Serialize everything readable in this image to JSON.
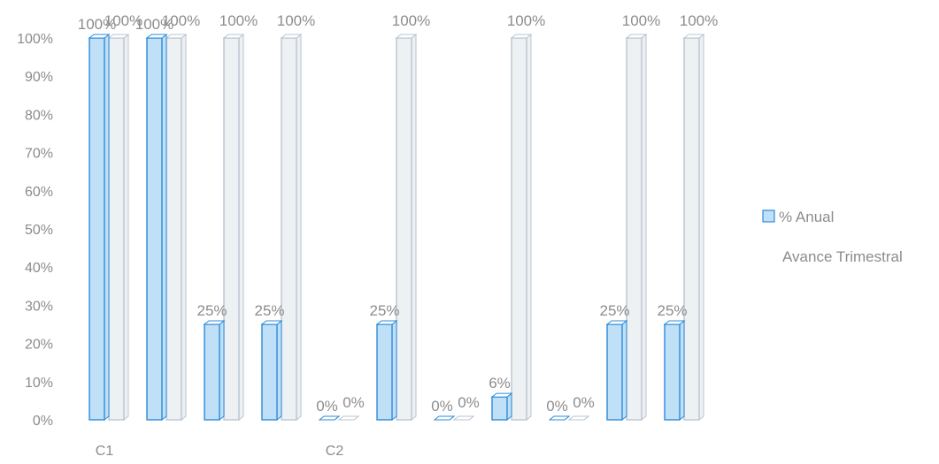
{
  "chart_data": {
    "type": "bar",
    "title": "",
    "xlabel": "",
    "ylabel": "",
    "ylim": [
      0,
      100
    ],
    "y_ticks": [
      "0%",
      "10%",
      "20%",
      "30%",
      "40%",
      "50%",
      "60%",
      "70%",
      "80%",
      "90%",
      "100%"
    ],
    "categories": [
      "C1",
      "",
      "",
      "",
      "C2",
      "",
      "",
      "",
      "",
      "",
      ""
    ],
    "series": [
      {
        "name": "% Anual",
        "values": [
          100,
          100,
          25,
          25,
          0,
          25,
          0,
          6,
          0,
          25,
          25
        ],
        "labels": [
          "100%",
          "100%",
          "25%",
          "25%",
          "0%",
          "25%",
          "0%",
          "6%",
          "0%",
          "25%",
          "25%"
        ],
        "color": "#2e8bd8",
        "fill": "#bfe0f7"
      },
      {
        "name": "Avance Trimestral",
        "values": [
          100,
          100,
          100,
          100,
          0,
          100,
          0,
          100,
          0,
          100,
          100
        ],
        "labels": [
          "100%",
          "100%",
          "100%",
          "100%",
          "0%",
          "100%",
          "0%",
          "100%",
          "0%",
          "100%",
          "100%"
        ],
        "color": "#b9c4cf",
        "fill": "#eef1f4"
      }
    ],
    "grid": false,
    "legend_position": "right",
    "style": "3d-clustered-column"
  }
}
